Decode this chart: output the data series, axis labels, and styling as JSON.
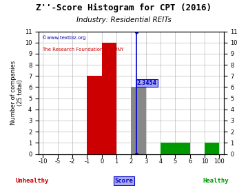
{
  "title": "Z''-Score Histogram for CPT (2016)",
  "subtitle": "Industry: Residential REITs",
  "watermark1": "©www.textbiz.org",
  "watermark2": "The Research Foundation of SUNY",
  "xlabel": "Score",
  "ylabel": "Number of companies\n(25 total)",
  "ylim": [
    0,
    11
  ],
  "yticks": [
    0,
    1,
    2,
    3,
    4,
    5,
    6,
    7,
    8,
    9,
    10,
    11
  ],
  "xtick_labels": [
    "-10",
    "-5",
    "-2",
    "-1",
    "0",
    "1",
    "2",
    "3",
    "4",
    "5",
    "6",
    "10",
    "100"
  ],
  "xtick_positions": [
    -10,
    -5,
    -2,
    -1,
    0,
    1,
    2,
    3,
    4,
    5,
    6,
    10,
    100
  ],
  "bars": [
    {
      "x_left": -1,
      "x_right": 0,
      "height": 7,
      "color": "#cc0000"
    },
    {
      "x_left": 0,
      "x_right": 1,
      "height": 10,
      "color": "#cc0000"
    },
    {
      "x_left": 2,
      "x_right": 3,
      "height": 6,
      "color": "#888888"
    },
    {
      "x_left": 4,
      "x_right": 6,
      "height": 1,
      "color": "#009900"
    },
    {
      "x_left": 10,
      "x_right": 100,
      "height": 1,
      "color": "#009900"
    }
  ],
  "cpt_score": 2.3454,
  "cpt_score_label": "2.3454",
  "cpt_bar_height": 6,
  "unhealthy_label": "Unhealthy",
  "healthy_label": "Healthy",
  "unhealthy_color": "#cc0000",
  "healthy_color": "#009900",
  "score_label_color": "#0000cc",
  "bg_color": "#ffffff",
  "grid_color": "#aaaaaa",
  "title_fontsize": 9,
  "subtitle_fontsize": 7.5,
  "axis_fontsize": 6,
  "label_fontsize": 6,
  "watermark1_color": "#0000aa",
  "watermark2_color": "#cc0000"
}
